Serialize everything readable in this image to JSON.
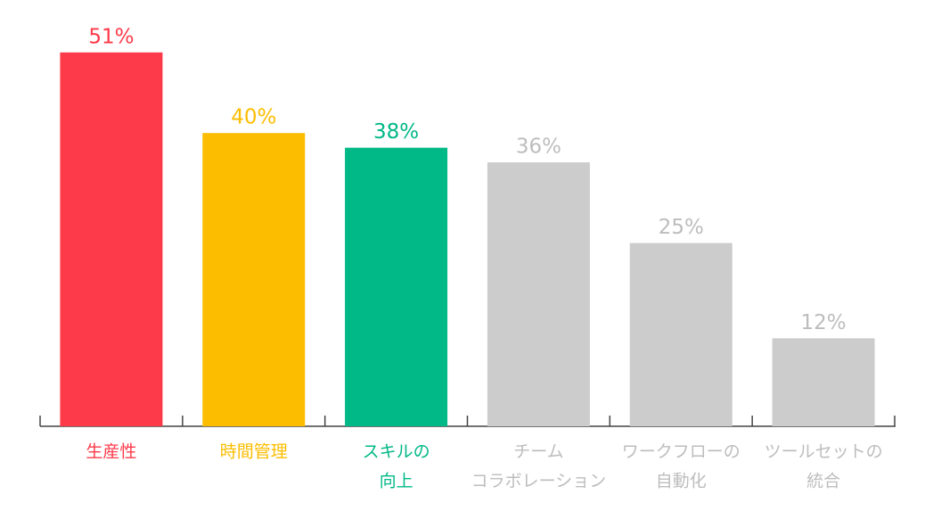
{
  "chart_data": {
    "type": "bar",
    "categories": [
      [
        "生産性"
      ],
      [
        "時間管理"
      ],
      [
        "スキルの",
        "向上"
      ],
      [
        "チーム",
        "コラボレーション"
      ],
      [
        "ワークフローの",
        "自動化"
      ],
      [
        "ツールセットの",
        "統合"
      ]
    ],
    "values": [
      51,
      40,
      38,
      36,
      25,
      12
    ],
    "value_labels": [
      "51%",
      "40%",
      "38%",
      "36%",
      "25%",
      "12%"
    ],
    "colors": [
      "#fd3a4a",
      "#fcbd01",
      "#01b887",
      "#cccccc",
      "#cccccc",
      "#cccccc"
    ]
  }
}
